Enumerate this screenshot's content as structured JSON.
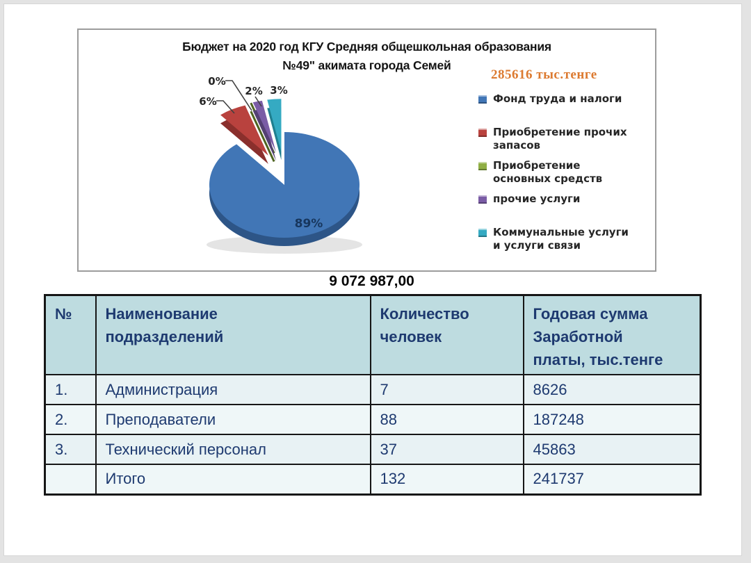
{
  "slide": {
    "grand_total": "9 072 987,00"
  },
  "chart": {
    "title_line1": "Бюджет на 2020  год КГУ Средняя общешкольная образования",
    "title_line2": "№49\" акимата города Семей"
  },
  "chart_data": [
    {
      "type": "pie",
      "style": "3d-exploded-pie",
      "title": "Бюджет на 2020 год КГУ Средняя общешкольная образования №49\" акимата города Семей",
      "annotation": "285616 тыс.тенге",
      "annotation_color": "#dc7a30",
      "labels": [
        "Фонд труда и налоги",
        "Приобретение прочих запасов",
        "Приобретение основных средств",
        "прочие услуги",
        "Коммунальные услуги и услуги связи"
      ],
      "values_percent": [
        89,
        6,
        0,
        2,
        3
      ],
      "colors": [
        "#4176b6",
        "#b9423e",
        "#8fae44",
        "#7a5ca5",
        "#35aac2"
      ],
      "colors_dark": [
        "#2d5587",
        "#8a2f2c",
        "#4e6420",
        "#544073",
        "#1f7f8f"
      ],
      "legend_position": "right"
    },
    {
      "type": "table",
      "columns": [
        "№",
        "Наименование\nподразделений",
        "Количество\nчеловек",
        "Годовая сумма\nЗаработной\nплаты, тыс.тенге"
      ],
      "rows": [
        [
          "1.",
          "Администрация",
          "7",
          "8626"
        ],
        [
          "2.",
          "Преподаватели",
          "88",
          "187248"
        ],
        [
          "3.",
          "Технический персонал",
          "37",
          "45863"
        ],
        [
          "",
          "Итого",
          "132",
          "241737"
        ]
      ]
    }
  ]
}
